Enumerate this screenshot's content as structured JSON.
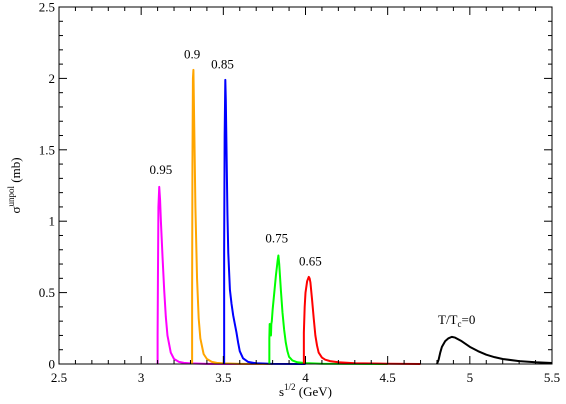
{
  "chart_data": {
    "type": "line",
    "title": "",
    "xlabel": {
      "base": "s",
      "sup": "1/2",
      "rest": " (GeV)"
    },
    "ylabel": {
      "base": "σ",
      "sup": "unpol",
      "rest": " (mb)"
    },
    "xlim": [
      2.5,
      5.5
    ],
    "ylim": [
      0,
      2.5
    ],
    "xticks": [
      2.5,
      3,
      3.5,
      4,
      4.5,
      5,
      5.5
    ],
    "xtick_labels": [
      "2.5",
      "3",
      "3.5",
      "4",
      "4.5",
      "5",
      "5.5"
    ],
    "yticks": [
      0,
      0.5,
      1,
      1.5,
      2,
      2.5
    ],
    "ytick_labels": [
      "0",
      "0.5",
      "1",
      "1.5",
      "2",
      "2.5"
    ],
    "grid": false,
    "legend": "none",
    "series": [
      {
        "label": "0.95",
        "color": "#ff00ff",
        "x": [
          3.1,
          3.1,
          3.102,
          3.105,
          3.11,
          3.115,
          3.12,
          3.13,
          3.14,
          3.15,
          3.16,
          3.18,
          3.2,
          3.23,
          3.26,
          3.3,
          3.4,
          3.6,
          3.8
        ],
        "y": [
          0,
          0.2,
          0.6,
          1.1,
          1.24,
          1.15,
          1.0,
          0.75,
          0.52,
          0.33,
          0.2,
          0.08,
          0.035,
          0.015,
          0.008,
          0.004,
          0.001,
          0,
          0
        ]
      },
      {
        "label": "0.9",
        "color": "#ffa500",
        "x": [
          3.31,
          3.31,
          3.312,
          3.315,
          3.318,
          3.32,
          3.325,
          3.33,
          3.34,
          3.35,
          3.36,
          3.38,
          3.4,
          3.43,
          3.46,
          3.5,
          3.6,
          3.8
        ],
        "y": [
          0,
          0.5,
          1.4,
          2.0,
          2.06,
          1.9,
          1.5,
          1.1,
          0.6,
          0.32,
          0.18,
          0.07,
          0.035,
          0.015,
          0.008,
          0.004,
          0.001,
          0
        ]
      },
      {
        "label": "0.85",
        "color": "#0000ff",
        "x": [
          3.505,
          3.505,
          3.508,
          3.512,
          3.515,
          3.52,
          3.525,
          3.53,
          3.54,
          3.55,
          3.56,
          3.57,
          3.58,
          3.59,
          3.6,
          3.62,
          3.65,
          3.7,
          3.8,
          4.0
        ],
        "y": [
          0,
          0.8,
          1.6,
          1.99,
          1.85,
          1.45,
          1.05,
          0.78,
          0.52,
          0.42,
          0.34,
          0.28,
          0.22,
          0.15,
          0.09,
          0.04,
          0.015,
          0.005,
          0.001,
          0
        ]
      },
      {
        "label": "0.75",
        "color": "#00ff00",
        "x": [
          3.78,
          3.78,
          3.782,
          3.785,
          3.788,
          3.79,
          3.792,
          3.795,
          3.8,
          3.81,
          3.82,
          3.83,
          3.835,
          3.84,
          3.85,
          3.86,
          3.87,
          3.88,
          3.89,
          3.9,
          3.92,
          3.95,
          4.0,
          4.1,
          4.3,
          4.5
        ],
        "y": [
          0,
          0.18,
          0.28,
          0.22,
          0.26,
          0.2,
          0.28,
          0.3,
          0.38,
          0.5,
          0.62,
          0.72,
          0.76,
          0.7,
          0.52,
          0.36,
          0.24,
          0.15,
          0.09,
          0.05,
          0.025,
          0.012,
          0.006,
          0.002,
          0.001,
          0
        ]
      },
      {
        "label": "0.65",
        "color": "#ff0000",
        "x": [
          3.99,
          3.99,
          3.995,
          4.0,
          4.01,
          4.02,
          4.025,
          4.03,
          4.04,
          4.05,
          4.06,
          4.07,
          4.08,
          4.1,
          4.12,
          4.15,
          4.2,
          4.3,
          4.5,
          4.7
        ],
        "y": [
          0,
          0.22,
          0.4,
          0.5,
          0.58,
          0.61,
          0.6,
          0.57,
          0.45,
          0.32,
          0.2,
          0.13,
          0.08,
          0.045,
          0.03,
          0.02,
          0.012,
          0.005,
          0.002,
          0
        ]
      },
      {
        "label": "T/T_c=0",
        "color": "#000000",
        "x": [
          4.8,
          4.81,
          4.82,
          4.83,
          4.85,
          4.87,
          4.89,
          4.91,
          4.95,
          5.0,
          5.05,
          5.1,
          5.15,
          5.2,
          5.3,
          5.4,
          5.5
        ],
        "y": [
          0,
          0.03,
          0.08,
          0.12,
          0.16,
          0.18,
          0.19,
          0.185,
          0.16,
          0.12,
          0.09,
          0.065,
          0.048,
          0.035,
          0.02,
          0.012,
          0.007
        ]
      }
    ],
    "annotations": [
      {
        "text": "0.95",
        "x": 3.12,
        "y": 1.33
      },
      {
        "text": "0.9",
        "x": 3.31,
        "y": 2.14
      },
      {
        "text": "0.85",
        "x": 3.495,
        "y": 2.07
      },
      {
        "text": "0.75",
        "x": 3.825,
        "y": 0.85
      },
      {
        "text": "0.65",
        "x": 4.03,
        "y": 0.69
      },
      {
        "text": "T/T",
        "sub": "c",
        "rest": "=0",
        "x": 4.92,
        "y": 0.28
      }
    ]
  }
}
